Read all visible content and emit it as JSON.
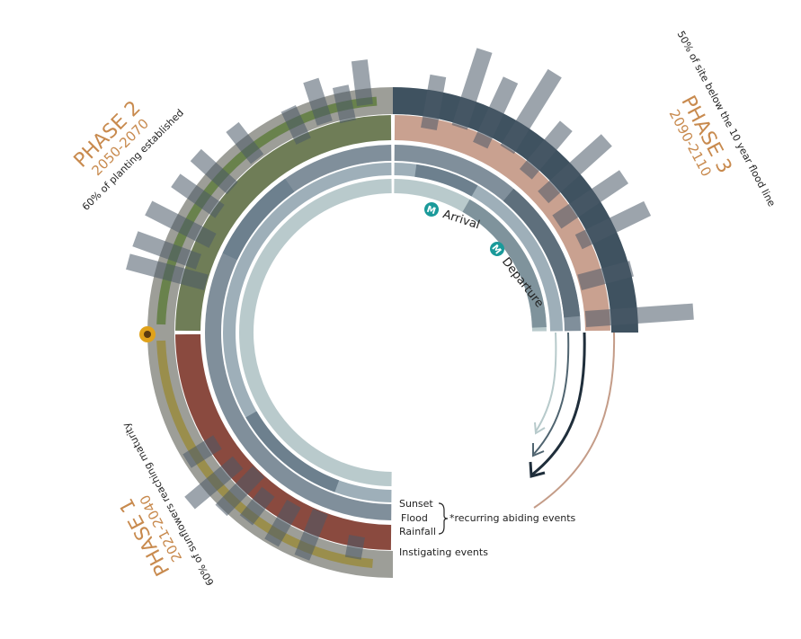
{
  "phases": [
    {
      "title": "PHASE 1",
      "years": "2021-2040",
      "note": "60% of sunflowers reaching maturity"
    },
    {
      "title": "PHASE 2",
      "years": "2050-2070",
      "note": "60% of planting established"
    },
    {
      "title": "PHASE 3",
      "years": "2090-2110",
      "note": "50% of site below the 10 year flood line"
    }
  ],
  "station": {
    "icon": "M",
    "arrival": "Arrival",
    "departure": "Departure"
  },
  "legend": {
    "abiding": [
      "Sunset",
      "Flood",
      "Rainfall"
    ],
    "abiding_note": "*recurring abiding events",
    "instigating": "Instigating events"
  }
}
